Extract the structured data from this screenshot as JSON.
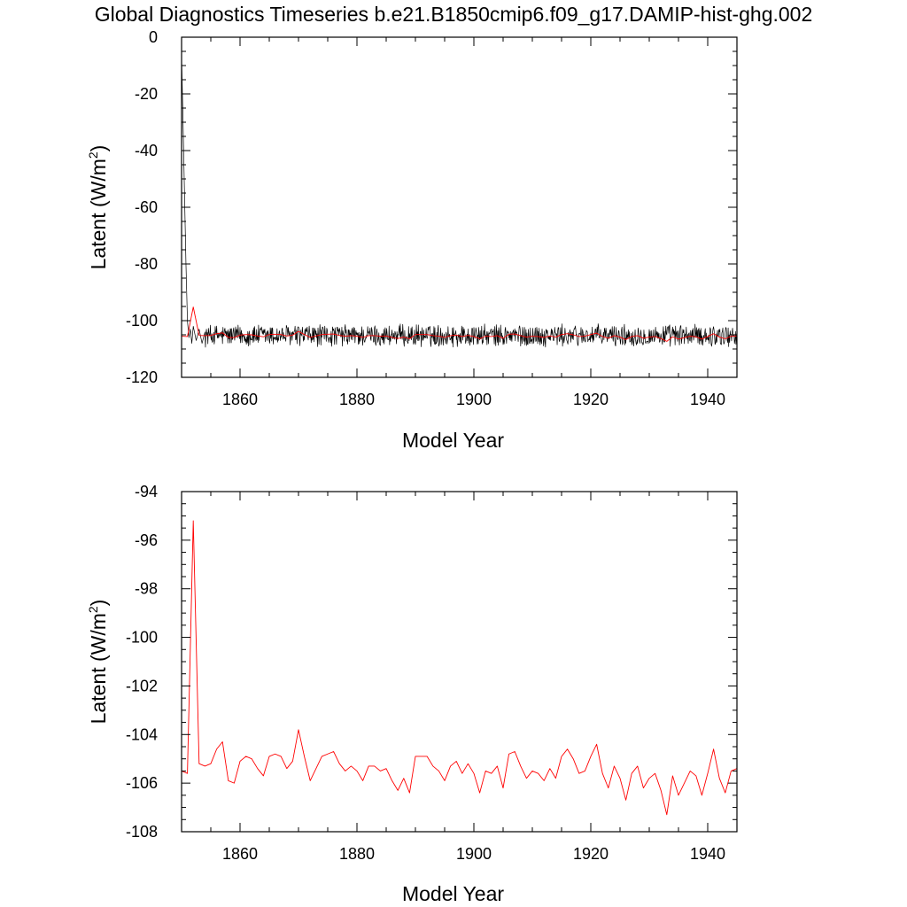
{
  "figure": {
    "title": "Global Diagnostics Timeseries b.e21.B1850cmip6.f09_g17.DAMIP-hist-ghg.002"
  },
  "chart_data": [
    {
      "type": "line",
      "xlabel": "Model Year",
      "ylabel": "Latent (W/m²)",
      "ylabel_main": "Latent (W/m",
      "ylabel_sup": "2",
      "ylabel_end": ")",
      "xlim": [
        1850,
        1945
      ],
      "ylim": [
        -120,
        0
      ],
      "xticks": [
        1860,
        1880,
        1900,
        1920,
        1940
      ],
      "yticks": [
        0,
        -20,
        -40,
        -60,
        -80,
        -100,
        -120
      ],
      "series": [
        {
          "color": "#000000",
          "resolution": "monthly",
          "x": [
            1850.0,
            1850.25,
            1850.5,
            1850.75,
            1851.0,
            1851.25,
            1851.5,
            1851.75,
            1852.0,
            1852.5,
            1853.0,
            1853.5,
            1854.0
          ],
          "values": [
            -7,
            -30,
            -55,
            -80,
            -100,
            -106,
            -103,
            -108,
            -102,
            -107,
            -103,
            -108,
            -104
          ],
          "noise_mean": -105.3,
          "noise_amplitude": 3.5,
          "noise_range": [
            1854,
            1945
          ]
        },
        {
          "color": "#ff0000",
          "resolution": "annual",
          "ref": "annual_means"
        }
      ]
    },
    {
      "type": "line",
      "xlabel": "Model Year",
      "ylabel": "Latent (W/m²)",
      "ylabel_main": "Latent (W/m",
      "ylabel_sup": "2",
      "ylabel_end": ")",
      "xlim": [
        1850,
        1945
      ],
      "ylim": [
        -108,
        -94
      ],
      "xticks": [
        1860,
        1880,
        1900,
        1920,
        1940
      ],
      "yticks": [
        -94,
        -96,
        -98,
        -100,
        -102,
        -104,
        -106,
        -108
      ],
      "series": [
        {
          "color": "#ff0000",
          "resolution": "annual",
          "ref": "annual_means"
        }
      ]
    }
  ],
  "annual_means": {
    "x": [
      1850,
      1851,
      1852,
      1853,
      1854,
      1855,
      1856,
      1857,
      1858,
      1859,
      1860,
      1861,
      1862,
      1863,
      1864,
      1865,
      1866,
      1867,
      1868,
      1869,
      1870,
      1871,
      1872,
      1873,
      1874,
      1875,
      1876,
      1877,
      1878,
      1879,
      1880,
      1881,
      1882,
      1883,
      1884,
      1885,
      1886,
      1887,
      1888,
      1889,
      1890,
      1891,
      1892,
      1893,
      1894,
      1895,
      1896,
      1897,
      1898,
      1899,
      1900,
      1901,
      1902,
      1903,
      1904,
      1905,
      1906,
      1907,
      1908,
      1909,
      1910,
      1911,
      1912,
      1913,
      1914,
      1915,
      1916,
      1917,
      1918,
      1919,
      1920,
      1921,
      1922,
      1923,
      1924,
      1925,
      1926,
      1927,
      1928,
      1929,
      1930,
      1931,
      1932,
      1933,
      1934,
      1935,
      1936,
      1937,
      1938,
      1939,
      1940,
      1941,
      1942,
      1943,
      1944,
      1945
    ],
    "values": [
      -105.5,
      -105.6,
      -95.2,
      -105.2,
      -105.3,
      -105.2,
      -104.6,
      -104.3,
      -105.9,
      -106.0,
      -105.1,
      -104.9,
      -105.0,
      -105.4,
      -105.7,
      -104.9,
      -104.8,
      -104.9,
      -105.4,
      -105.1,
      -103.8,
      -104.9,
      -105.9,
      -105.4,
      -104.9,
      -104.8,
      -104.7,
      -105.2,
      -105.5,
      -105.3,
      -105.5,
      -105.9,
      -105.3,
      -105.3,
      -105.5,
      -105.4,
      -105.9,
      -106.3,
      -105.8,
      -106.4,
      -104.9,
      -104.9,
      -104.9,
      -105.3,
      -105.5,
      -105.9,
      -105.3,
      -105.1,
      -105.6,
      -105.2,
      -105.6,
      -106.4,
      -105.5,
      -105.6,
      -105.3,
      -106.2,
      -104.8,
      -104.7,
      -105.3,
      -105.8,
      -105.5,
      -105.6,
      -105.9,
      -105.4,
      -105.8,
      -104.9,
      -104.6,
      -105.0,
      -105.6,
      -105.5,
      -104.9,
      -104.4,
      -105.6,
      -106.2,
      -105.3,
      -105.8,
      -106.7,
      -105.6,
      -105.3,
      -106.2,
      -105.8,
      -105.6,
      -106.3,
      -107.3,
      -105.7,
      -106.5,
      -106.0,
      -105.5,
      -105.7,
      -106.5,
      -105.6,
      -104.6,
      -105.8,
      -106.4,
      -105.5,
      -105.4
    ]
  }
}
